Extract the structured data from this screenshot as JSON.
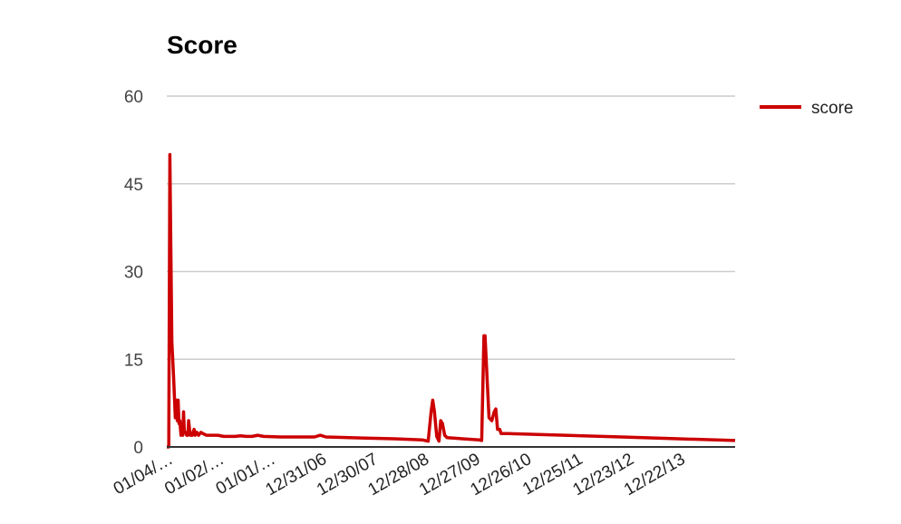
{
  "chart_data": {
    "type": "line",
    "title": "Score",
    "xlabel": "",
    "ylabel": "",
    "ylim": [
      0,
      60
    ],
    "yticks": [
      "0",
      "15",
      "30",
      "45",
      "60"
    ],
    "grid": true,
    "legend_position": "right",
    "series_color": "#cc0000",
    "x_tick_labels": [
      "01/04/…",
      "01/02/…",
      "01/01/…",
      "12/31/06",
      "12/30/07",
      "12/28/08",
      "12/27/09",
      "12/26/10",
      "12/25/11",
      "12/23/12",
      "12/22/13"
    ],
    "series": [
      {
        "name": "score",
        "points": [
          [
            0.0,
            0
          ],
          [
            0.35,
            0
          ],
          [
            0.55,
            50
          ],
          [
            0.7,
            35
          ],
          [
            0.9,
            18
          ],
          [
            1.2,
            12
          ],
          [
            1.5,
            5
          ],
          [
            1.7,
            8
          ],
          [
            1.85,
            4.5
          ],
          [
            2.0,
            8
          ],
          [
            2.15,
            4
          ],
          [
            2.3,
            4.5
          ],
          [
            2.5,
            2
          ],
          [
            2.65,
            4
          ],
          [
            2.8,
            2
          ],
          [
            2.95,
            6
          ],
          [
            3.1,
            2.5
          ],
          [
            3.3,
            2.5
          ],
          [
            3.5,
            2
          ],
          [
            3.7,
            2
          ],
          [
            3.85,
            4.5
          ],
          [
            4.0,
            3
          ],
          [
            4.2,
            2
          ],
          [
            4.5,
            2
          ],
          [
            4.8,
            3
          ],
          [
            5.0,
            2
          ],
          [
            5.3,
            2.5
          ],
          [
            5.6,
            2
          ],
          [
            6.0,
            2.5
          ],
          [
            6.5,
            2.2
          ],
          [
            7.0,
            2
          ],
          [
            8.0,
            2
          ],
          [
            9.0,
            2
          ],
          [
            10.0,
            1.8
          ],
          [
            12.0,
            1.8
          ],
          [
            13.0,
            1.9
          ],
          [
            14.0,
            1.8
          ],
          [
            15.0,
            1.8
          ],
          [
            16.0,
            2
          ],
          [
            17.0,
            1.8
          ],
          [
            20.0,
            1.7
          ],
          [
            26.0,
            1.7
          ],
          [
            27.0,
            2
          ],
          [
            28.0,
            1.7
          ],
          [
            35.0,
            1.5
          ],
          [
            40.0,
            1.4
          ],
          [
            45.0,
            1.2
          ],
          [
            46.0,
            1.0
          ],
          [
            46.5,
            6
          ],
          [
            46.8,
            8
          ],
          [
            47.1,
            6
          ],
          [
            47.5,
            1.8
          ],
          [
            47.9,
            1.0
          ],
          [
            48.2,
            4.5
          ],
          [
            48.5,
            4
          ],
          [
            48.9,
            2
          ],
          [
            49.3,
            1.6
          ],
          [
            52.0,
            1.4
          ],
          [
            55.0,
            1.2
          ],
          [
            55.4,
            1.1
          ],
          [
            55.8,
            19
          ],
          [
            56.0,
            19
          ],
          [
            56.4,
            11
          ],
          [
            56.7,
            5
          ],
          [
            57.2,
            4.5
          ],
          [
            57.6,
            6
          ],
          [
            57.9,
            6.5
          ],
          [
            58.2,
            3
          ],
          [
            58.6,
            3
          ],
          [
            58.8,
            2.3
          ],
          [
            60.0,
            2.3
          ],
          [
            70.0,
            2.0
          ],
          [
            80.0,
            1.7
          ],
          [
            90.0,
            1.4
          ],
          [
            100.0,
            1.1
          ]
        ]
      }
    ]
  }
}
